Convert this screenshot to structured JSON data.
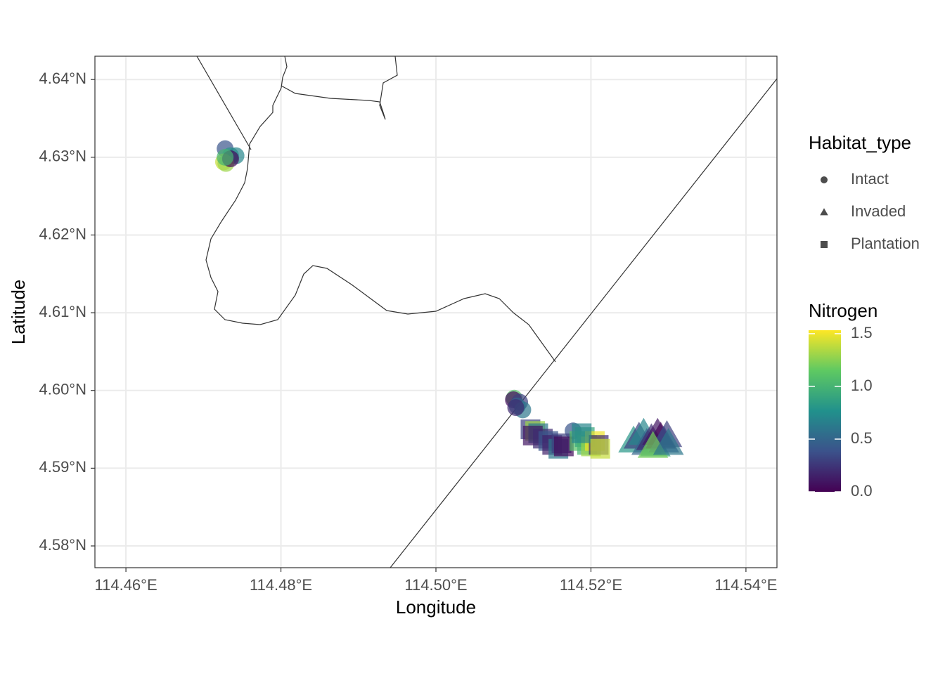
{
  "chart_data": {
    "type": "scatter",
    "x_label": "Longitude",
    "y_label": "Latitude",
    "xlim": [
      114.456,
      114.544
    ],
    "ylim": [
      4.5772,
      4.643
    ],
    "xticks": [
      {
        "value": 114.46,
        "label": "114.46°E"
      },
      {
        "value": 114.48,
        "label": "114.48°E"
      },
      {
        "value": 114.5,
        "label": "114.50°E"
      },
      {
        "value": 114.52,
        "label": "114.52°E"
      },
      {
        "value": 114.54,
        "label": "114.54°E"
      }
    ],
    "yticks": [
      {
        "value": 4.58,
        "label": "4.58°N"
      },
      {
        "value": 4.59,
        "label": "4.59°N"
      },
      {
        "value": 4.6,
        "label": "4.60°N"
      },
      {
        "value": 4.61,
        "label": "4.61°N"
      },
      {
        "value": 4.62,
        "label": "4.62°N"
      },
      {
        "value": 4.63,
        "label": "4.63°N"
      },
      {
        "value": 4.64,
        "label": "4.64°N"
      }
    ],
    "grid": true,
    "shape_legend_title": "Habitat_type",
    "colorbar": {
      "title": "Nitrogen",
      "lim": [
        0,
        1.533
      ],
      "ticks": [
        {
          "value": 0,
          "label": "0.0"
        },
        {
          "value": 0.5,
          "label": "0.5"
        },
        {
          "value": 1,
          "label": "1.0"
        },
        {
          "value": 1.5,
          "label": "1.5"
        }
      ],
      "colors": [
        "#440154",
        "#3b528b",
        "#21918c",
        "#5ec962",
        "#fde725"
      ]
    },
    "series": [
      {
        "name": "Intact",
        "shape": "circle",
        "x": [
          114.4728,
          114.4735,
          114.4742,
          114.4726,
          114.4729,
          114.4735,
          114.4728,
          114.5101,
          114.51,
          114.5108,
          114.5105,
          114.5112,
          114.5103,
          114.5177
        ],
        "y": [
          4.6311,
          4.6302,
          4.6302,
          4.6294,
          4.6292,
          4.6298,
          4.63,
          4.599,
          4.5988,
          4.5985,
          4.598,
          4.5975,
          4.5978,
          4.5948
        ],
        "nitrogen": [
          0.4,
          0.8,
          0.7,
          1.4,
          1.3,
          0.05,
          1.0,
          1.1,
          0.05,
          0.3,
          0.5,
          0.6,
          0.2,
          0.4
        ]
      },
      {
        "name": "Invaded",
        "shape": "triangle",
        "x": [
          114.5255,
          114.5262,
          114.5268,
          114.5272,
          114.5278,
          114.5283,
          114.5286,
          114.529,
          114.5294,
          114.5298,
          114.528,
          114.53
        ],
        "y": [
          4.5935,
          4.594,
          4.5945,
          4.5932,
          4.5938,
          4.593,
          4.5945,
          4.594,
          4.5935,
          4.5942,
          4.5928,
          4.5932
        ],
        "nitrogen": [
          0.8,
          0.3,
          0.7,
          0.5,
          0.2,
          0.9,
          0.1,
          0.02,
          0.4,
          0.3,
          1.2,
          0.6
        ]
      },
      {
        "name": "Plantation",
        "shape": "square",
        "x": [
          114.5122,
          114.5128,
          114.5132,
          114.5125,
          114.5138,
          114.5145,
          114.515,
          114.5158,
          114.5162,
          114.5165,
          114.5185,
          114.5192,
          114.5195,
          114.52,
          114.5205,
          114.521,
          114.5188,
          114.5212
        ],
        "y": [
          4.595,
          4.5948,
          4.5945,
          4.5942,
          4.5938,
          4.5935,
          4.593,
          4.5925,
          4.5932,
          4.5928,
          4.5935,
          4.594,
          4.593,
          4.5928,
          4.5935,
          4.593,
          4.5945,
          4.5925
        ],
        "nitrogen": [
          0.3,
          1.3,
          0.6,
          0.1,
          0.2,
          0.4,
          0.15,
          0.6,
          0.3,
          0.05,
          1.1,
          0.9,
          1.0,
          1.3,
          1.5,
          0.2,
          0.7,
          1.4
        ]
      }
    ]
  }
}
